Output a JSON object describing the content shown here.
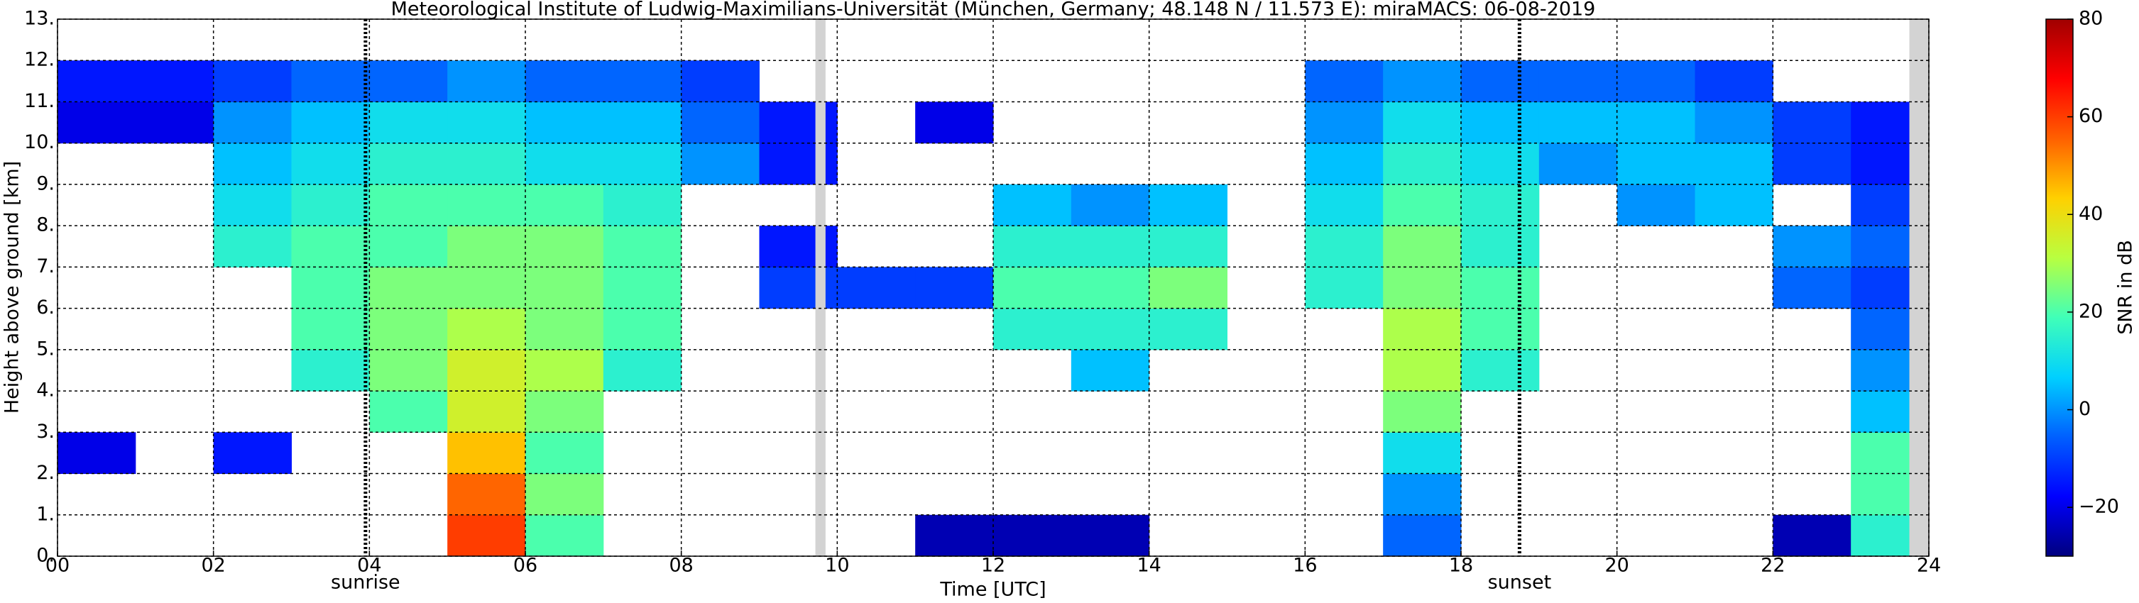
{
  "chart_data": {
    "type": "heatmap",
    "title": "Meteorological Institute of Ludwig-Maximilians-Universität (München, Germany; 48.148 N / 11.573 E):    miraMACS: 06-08-2019",
    "x_label": "Time [UTC]",
    "y_label": "Height above ground [km]",
    "colorbar_label": "SNR in dB",
    "x": [
      0.5,
      1.5,
      2.5,
      3.5,
      4.5,
      5.5,
      6.5,
      7.5,
      8.5,
      9.5,
      10.5,
      11.5,
      12.5,
      13.5,
      14.5,
      15.5,
      16.5,
      17.5,
      18.5,
      19.5,
      20.5,
      21.5,
      22.5,
      23.5
    ],
    "y": [
      0.5,
      1.5,
      2.5,
      3.5,
      4.5,
      5.5,
      6.5,
      7.5,
      8.5,
      9.5,
      10.5,
      11.5,
      12.5
    ],
    "z": [
      [
        null,
        null,
        null,
        null,
        null,
        60,
        20,
        null,
        null,
        null,
        null,
        -25,
        -25,
        -25,
        null,
        null,
        null,
        -5,
        null,
        null,
        null,
        null,
        -25,
        15
      ],
      [
        null,
        null,
        null,
        null,
        null,
        55,
        25,
        null,
        null,
        null,
        null,
        null,
        null,
        null,
        null,
        null,
        null,
        0,
        null,
        null,
        null,
        null,
        null,
        20
      ],
      [
        -20,
        null,
        -15,
        null,
        null,
        45,
        20,
        null,
        null,
        null,
        null,
        null,
        null,
        null,
        null,
        null,
        null,
        10,
        null,
        null,
        null,
        null,
        null,
        20
      ],
      [
        null,
        null,
        null,
        null,
        20,
        35,
        25,
        null,
        null,
        null,
        null,
        null,
        null,
        null,
        null,
        null,
        null,
        25,
        null,
        null,
        null,
        null,
        null,
        5
      ],
      [
        null,
        null,
        null,
        15,
        25,
        35,
        30,
        15,
        null,
        null,
        null,
        null,
        null,
        5,
        null,
        null,
        null,
        30,
        15,
        null,
        null,
        null,
        null,
        0
      ],
      [
        null,
        null,
        null,
        20,
        25,
        30,
        25,
        20,
        null,
        null,
        null,
        null,
        15,
        15,
        15,
        null,
        null,
        30,
        20,
        null,
        null,
        null,
        null,
        -5
      ],
      [
        null,
        null,
        null,
        20,
        25,
        25,
        25,
        20,
        null,
        -10,
        -10,
        -10,
        20,
        20,
        25,
        null,
        15,
        25,
        20,
        null,
        null,
        null,
        -5,
        -10
      ],
      [
        null,
        null,
        15,
        20,
        20,
        25,
        25,
        20,
        null,
        -15,
        null,
        null,
        15,
        15,
        15,
        null,
        15,
        25,
        15,
        null,
        null,
        null,
        0,
        -5
      ],
      [
        null,
        null,
        10,
        15,
        20,
        20,
        20,
        15,
        null,
        null,
        null,
        null,
        5,
        0,
        5,
        null,
        10,
        20,
        15,
        null,
        0,
        5,
        null,
        -10
      ],
      [
        null,
        null,
        5,
        10,
        15,
        15,
        10,
        10,
        0,
        -15,
        null,
        null,
        null,
        null,
        null,
        null,
        5,
        15,
        10,
        0,
        5,
        5,
        -10,
        -15
      ],
      [
        -20,
        -20,
        0,
        5,
        10,
        10,
        5,
        5,
        -5,
        -15,
        null,
        -20,
        null,
        null,
        null,
        null,
        0,
        10,
        5,
        5,
        5,
        0,
        -10,
        -15
      ],
      [
        -15,
        -15,
        -10,
        -5,
        -5,
        0,
        -5,
        -5,
        -10,
        null,
        null,
        null,
        null,
        null,
        null,
        null,
        -5,
        0,
        -5,
        -5,
        -5,
        -10,
        null,
        null
      ],
      [
        null,
        null,
        null,
        null,
        null,
        null,
        null,
        null,
        null,
        null,
        null,
        null,
        null,
        null,
        null,
        null,
        null,
        null,
        null,
        null,
        null,
        null,
        null,
        null
      ]
    ],
    "xlim": [
      0,
      24
    ],
    "xticks": [
      {
        "value": 0,
        "label": "00"
      },
      {
        "value": 2,
        "label": "02"
      },
      {
        "value": 4,
        "label": "04"
      },
      {
        "value": 6,
        "label": "06"
      },
      {
        "value": 8,
        "label": "08"
      },
      10,
      12,
      14,
      16,
      18,
      20,
      22,
      24
    ],
    "ylim": [
      0,
      13
    ],
    "yticks": [
      {
        "value": 0,
        "label": "0."
      },
      {
        "value": 1,
        "label": "1."
      },
      {
        "value": 2,
        "label": "2."
      },
      {
        "value": 3,
        "label": "3."
      },
      {
        "value": 4,
        "label": "4."
      },
      {
        "value": 5,
        "label": "5."
      },
      {
        "value": 6,
        "label": "6."
      },
      {
        "value": 7,
        "label": "7."
      },
      {
        "value": 8,
        "label": "8."
      },
      {
        "value": 9,
        "label": "9."
      },
      {
        "value": 10,
        "label": "10."
      },
      {
        "value": 11,
        "label": "11."
      },
      {
        "value": 12,
        "label": "12."
      },
      {
        "value": 13,
        "label": "13."
      }
    ],
    "clim": [
      -30,
      80
    ],
    "cticks": [
      {
        "value": -20,
        "label": "−20"
      },
      0,
      20,
      40,
      60,
      80
    ],
    "colormap": [
      "#00007f",
      "#0000ff",
      "#0060ff",
      "#00d0ff",
      "#40ffb8",
      "#b8ff40",
      "#ffd000",
      "#ff6000",
      "#ff0000",
      "#a00000"
    ],
    "grid": true,
    "missing_data": [
      [
        9.72,
        9.85
      ],
      [
        23.75,
        24
      ]
    ],
    "annotations": [
      {
        "text": "sunrise",
        "x": 3.95
      },
      {
        "text": "sunset",
        "x": 18.75
      }
    ]
  }
}
